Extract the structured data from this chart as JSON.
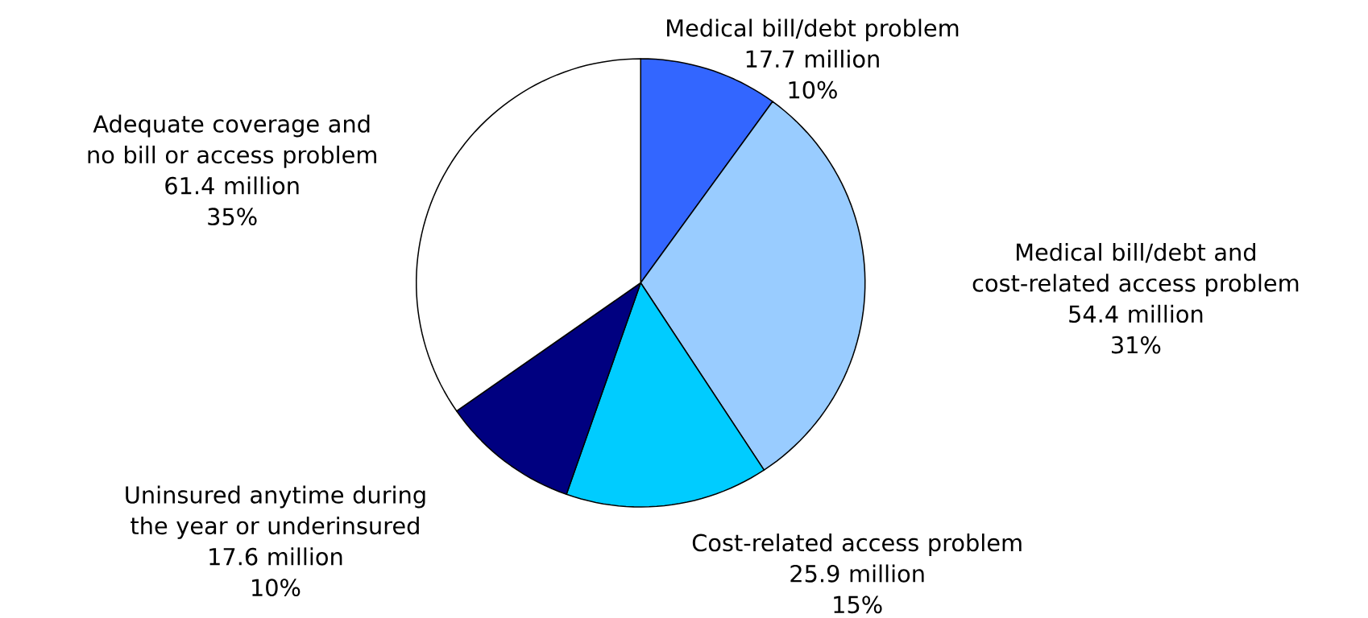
{
  "chart_data": {
    "type": "pie",
    "categories": [
      "Medical bill/debt problem",
      "Medical bill/debt and cost-related access problem",
      "Cost-related access problem",
      "Uninsured anytime during the year or underinsured",
      "Adequate coverage and no bill or access problem"
    ],
    "values": [
      17.7,
      54.4,
      25.9,
      17.6,
      61.4
    ],
    "value_labels": [
      "17.7 million",
      "54.4 million",
      "25.9 million",
      "17.6 million",
      "61.4 million"
    ],
    "annotations": [
      "10%",
      "31%",
      "15%",
      "10%",
      "35%"
    ],
    "colors": [
      "#3366ff",
      "#99ccff",
      "#00ccff",
      "#000080",
      "#ffffff"
    ]
  }
}
